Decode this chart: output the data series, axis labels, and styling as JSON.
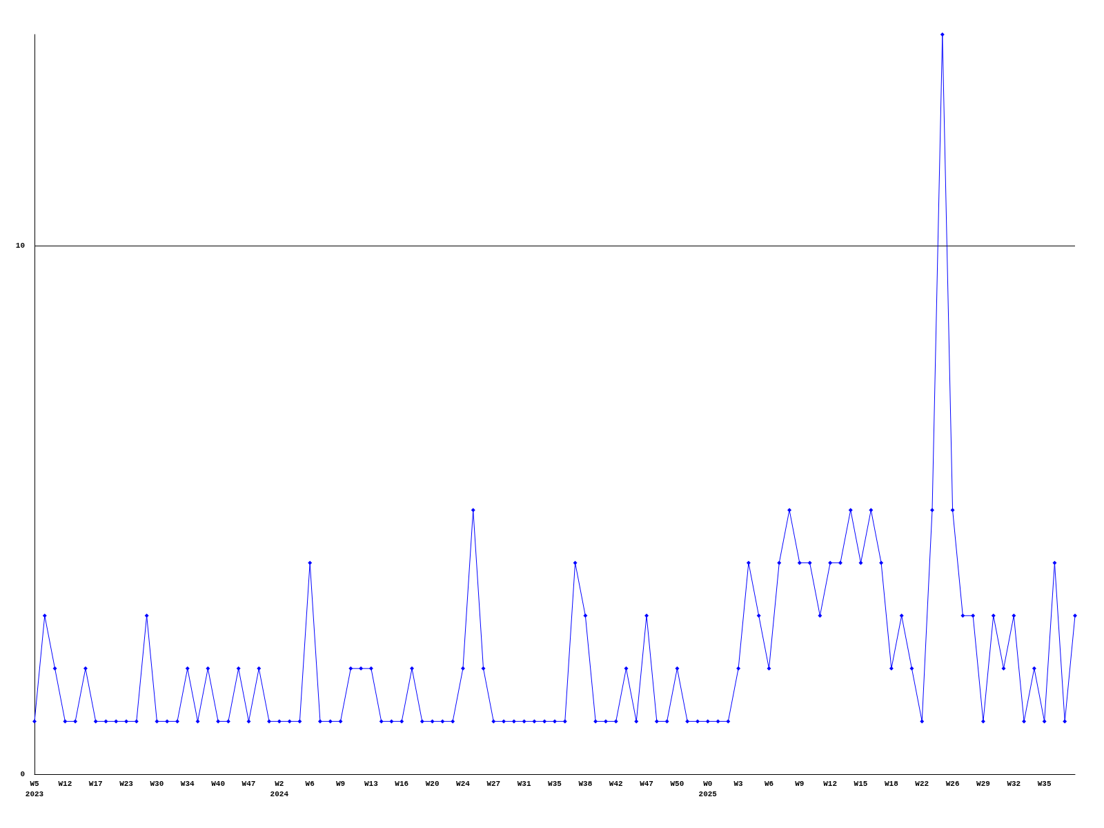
{
  "chart_data": {
    "type": "line",
    "categories": [
      "W5\n2023",
      null,
      null,
      "W12",
      null,
      null,
      "W17",
      null,
      null,
      "W23",
      null,
      null,
      "W30",
      null,
      null,
      "W34",
      null,
      null,
      "W40",
      null,
      null,
      "W47",
      null,
      null,
      "W2\n2024",
      null,
      null,
      "W6",
      null,
      null,
      "W9",
      null,
      null,
      "W13",
      null,
      null,
      "W16",
      null,
      null,
      "W20",
      null,
      null,
      "W24",
      null,
      null,
      "W27",
      null,
      null,
      "W31",
      null,
      null,
      "W35",
      null,
      null,
      "W38",
      null,
      null,
      "W42",
      null,
      null,
      "W47",
      null,
      null,
      "W50",
      null,
      null,
      "W0\n2025",
      null,
      null,
      "W3",
      null,
      null,
      "W6",
      null,
      null,
      "W9",
      null,
      null,
      "W12",
      null,
      null,
      "W15",
      null,
      null,
      "W18",
      null,
      null,
      "W22",
      null,
      null,
      "W26",
      null,
      null,
      "W29",
      null,
      null,
      "W32",
      null,
      null,
      "W35",
      null,
      null,
      null
    ],
    "series": [
      {
        "color": "#0000ff",
        "values": [
          1,
          3,
          2,
          1,
          1,
          2,
          1,
          1,
          1,
          1,
          1,
          3,
          1,
          1,
          1,
          2,
          1,
          2,
          1,
          1,
          2,
          1,
          2,
          1,
          1,
          1,
          1,
          4,
          1,
          1,
          1,
          2,
          2,
          2,
          1,
          1,
          1,
          2,
          1,
          1,
          1,
          1,
          2,
          5,
          2,
          1,
          1,
          1,
          1,
          1,
          1,
          1,
          1,
          4,
          3,
          1,
          1,
          1,
          2,
          1,
          3,
          1,
          1,
          2,
          1,
          1,
          1,
          1,
          1,
          2,
          4,
          3,
          2,
          4,
          5,
          4,
          4,
          3,
          4,
          4,
          5,
          4,
          5,
          4,
          2,
          3,
          2,
          1,
          5,
          14,
          5,
          3,
          3,
          1,
          3,
          2,
          3,
          1,
          2,
          1,
          4,
          1,
          3
        ]
      }
    ],
    "ylim": [
      0,
      14
    ],
    "yticks": [
      0,
      10
    ],
    "grid": "y",
    "marker": "diamond",
    "line_style": "solid"
  }
}
